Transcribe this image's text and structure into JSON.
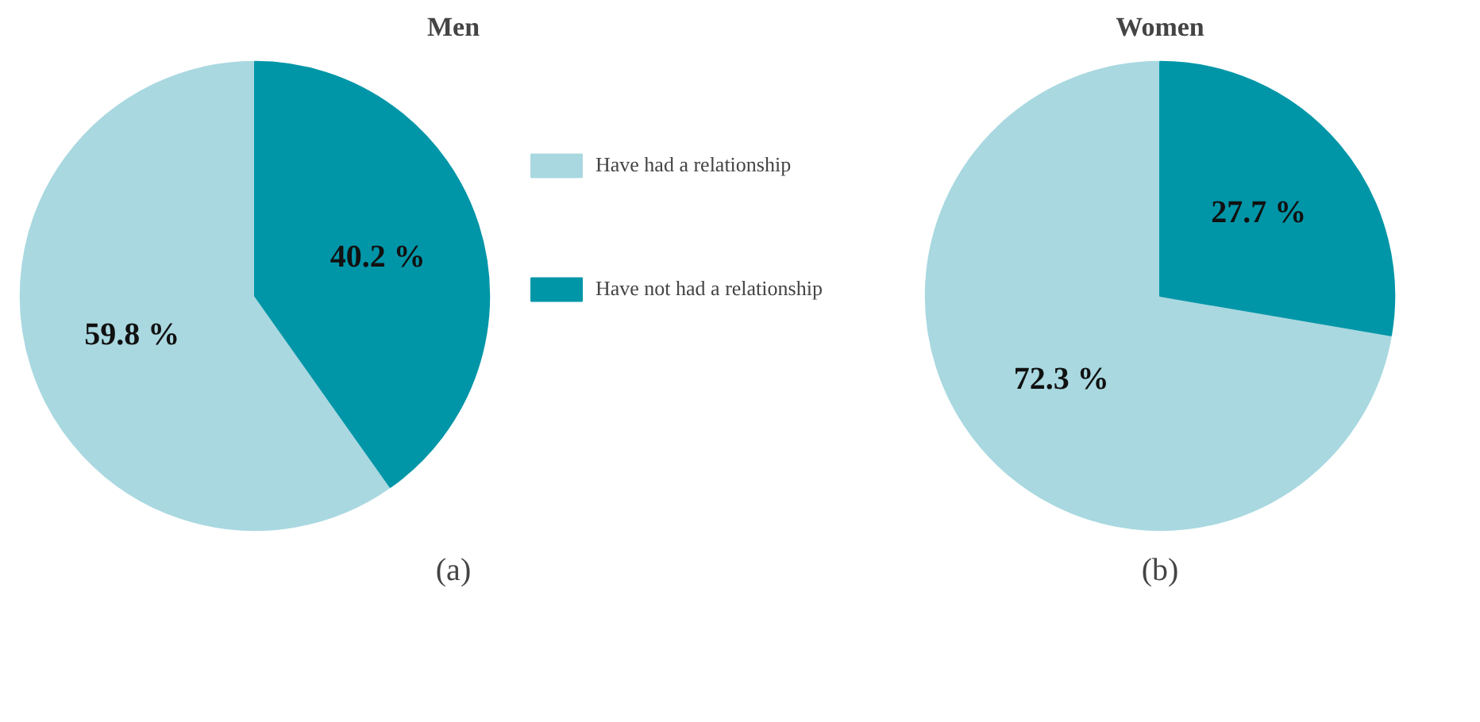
{
  "chart_data": [
    {
      "type": "pie",
      "title": "Men",
      "categories": [
        "Have had a relationship",
        "Have not had a relationship"
      ],
      "values": [
        59.8,
        40.2
      ],
      "colors": [
        "#a9d8e0",
        "#0096a8"
      ],
      "value_labels": [
        "59.8 %",
        "40.2 %"
      ],
      "legend": "right",
      "annotations": [
        "(a)"
      ]
    },
    {
      "type": "pie",
      "title": "Women",
      "categories": [
        null,
        null
      ],
      "values": [
        72.3,
        27.7
      ],
      "colors": [
        "#a9d8e0",
        "#0096a8"
      ],
      "value_labels": [
        "72.3 %",
        "27.7 %"
      ],
      "annotations": [
        "(b)"
      ]
    }
  ]
}
